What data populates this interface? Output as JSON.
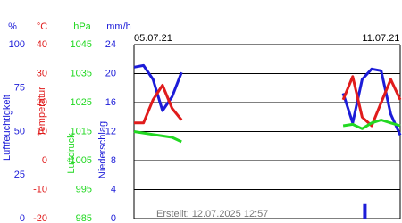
{
  "chart_data": {
    "type": "line",
    "categories": [
      "05.07.21",
      null,
      null,
      null,
      null,
      null,
      null,
      null,
      null,
      null,
      null,
      null,
      null,
      null,
      null,
      null,
      null,
      null,
      null,
      null,
      null,
      null,
      null,
      null,
      "11.07.21",
      null,
      null,
      null,
      null
    ],
    "axes": [
      {
        "title": "Luftfeuchtigkeit",
        "unit": "%",
        "color": "#1c1cd8",
        "ylim": [
          0,
          100
        ],
        "yticks": [
          0,
          25,
          50,
          75,
          100
        ]
      },
      {
        "title": "Temperatur",
        "unit": "°C",
        "color": "#e01c1c",
        "ylim": [
          -20,
          40
        ],
        "yticks": [
          -20,
          -10,
          0,
          10,
          20,
          30,
          40
        ]
      },
      {
        "title": "Luftdruck",
        "unit": "hPa",
        "color": "#22d822",
        "ylim": [
          985,
          1045
        ],
        "yticks": [
          985,
          995,
          1005,
          1015,
          1025,
          1035,
          1045
        ]
      },
      {
        "title": "Niederschlag",
        "unit": "mm/h",
        "color": "#1c1cd8",
        "ylim": [
          0,
          24
        ],
        "yticks": [
          0,
          4,
          8,
          12,
          16,
          20,
          24
        ]
      }
    ],
    "series": [
      {
        "type": "line",
        "axis": 0,
        "color": "#1c1cd8",
        "values": [
          87,
          88,
          80,
          62,
          70,
          84,
          null,
          null,
          null,
          null,
          null,
          null,
          null,
          null,
          null,
          null,
          null,
          null,
          null,
          null,
          null,
          null,
          72,
          55,
          80,
          86,
          85,
          60,
          48
        ]
      },
      {
        "type": "line",
        "axis": 1,
        "color": "#e01c1c",
        "values": [
          13,
          13,
          21,
          26,
          18,
          14,
          null,
          null,
          null,
          null,
          null,
          null,
          null,
          null,
          null,
          null,
          null,
          null,
          null,
          null,
          null,
          null,
          21,
          29,
          15,
          12,
          20,
          28,
          21
        ]
      },
      {
        "type": "line",
        "axis": 2,
        "color": "#22d822",
        "values": [
          1015,
          1014.5,
          1014,
          1013.5,
          1013,
          1011.5,
          null,
          null,
          null,
          null,
          null,
          null,
          null,
          null,
          null,
          null,
          null,
          null,
          null,
          null,
          null,
          null,
          1017,
          1017.5,
          1016,
          1018,
          1019,
          1018,
          1017
        ]
      },
      {
        "type": "bar",
        "axis": 3,
        "color": "#1c1cd8",
        "values": [
          0,
          0,
          0,
          0,
          0,
          0,
          null,
          null,
          null,
          null,
          null,
          null,
          null,
          null,
          null,
          null,
          null,
          null,
          null,
          null,
          null,
          null,
          0,
          0,
          2,
          0,
          0,
          0,
          0
        ]
      }
    ],
    "grid": true,
    "note": "Erstellt: 12.07.2025 12:57"
  }
}
